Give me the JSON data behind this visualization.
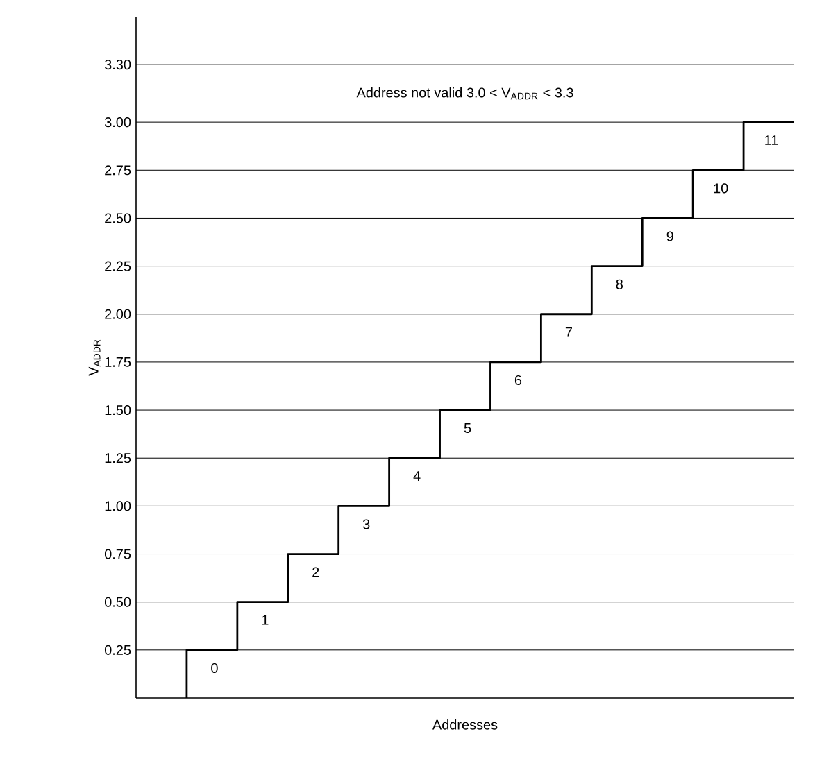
{
  "chart_data": {
    "type": "step",
    "xlabel": "Addresses",
    "ylabel": "V$_{ADDR}$",
    "ylim": [
      0,
      3.55
    ],
    "categories": [
      null,
      null,
      null,
      null,
      null,
      null,
      null,
      null,
      null,
      null,
      null,
      null,
      null
    ],
    "yticks": [
      {
        "value": 0.25,
        "label": "0.25"
      },
      {
        "value": 0.5,
        "label": "0.50"
      },
      {
        "value": 0.75,
        "label": "0.75"
      },
      {
        "value": 1.0,
        "label": "1.00"
      },
      {
        "value": 1.25,
        "label": "1.25"
      },
      {
        "value": 1.5,
        "label": "1.50"
      },
      {
        "value": 1.75,
        "label": "1.75"
      },
      {
        "value": 2.0,
        "label": "2.00"
      },
      {
        "value": 2.25,
        "label": "2.25"
      },
      {
        "value": 2.5,
        "label": "2.50"
      },
      {
        "value": 2.75,
        "label": "2.75"
      },
      {
        "value": 3.0,
        "label": "3.00"
      },
      {
        "value": 3.3,
        "label": "3.30"
      }
    ],
    "tick_labels": "y",
    "grid": "y",
    "line_style": "solid",
    "series": [
      {
        "color": "#000000",
        "values": [
          0,
          0.25,
          0.5,
          0.75,
          1.0,
          1.25,
          1.5,
          1.75,
          2.0,
          2.25,
          2.5,
          2.75,
          3.0
        ]
      }
    ],
    "annotations": [
      "0",
      "1",
      "2",
      "3",
      "4",
      "5",
      "6",
      "7",
      "8",
      "9",
      "10",
      "11",
      "Address not valid 3.0 < V$_{ADDR}$ < 3.3"
    ]
  }
}
